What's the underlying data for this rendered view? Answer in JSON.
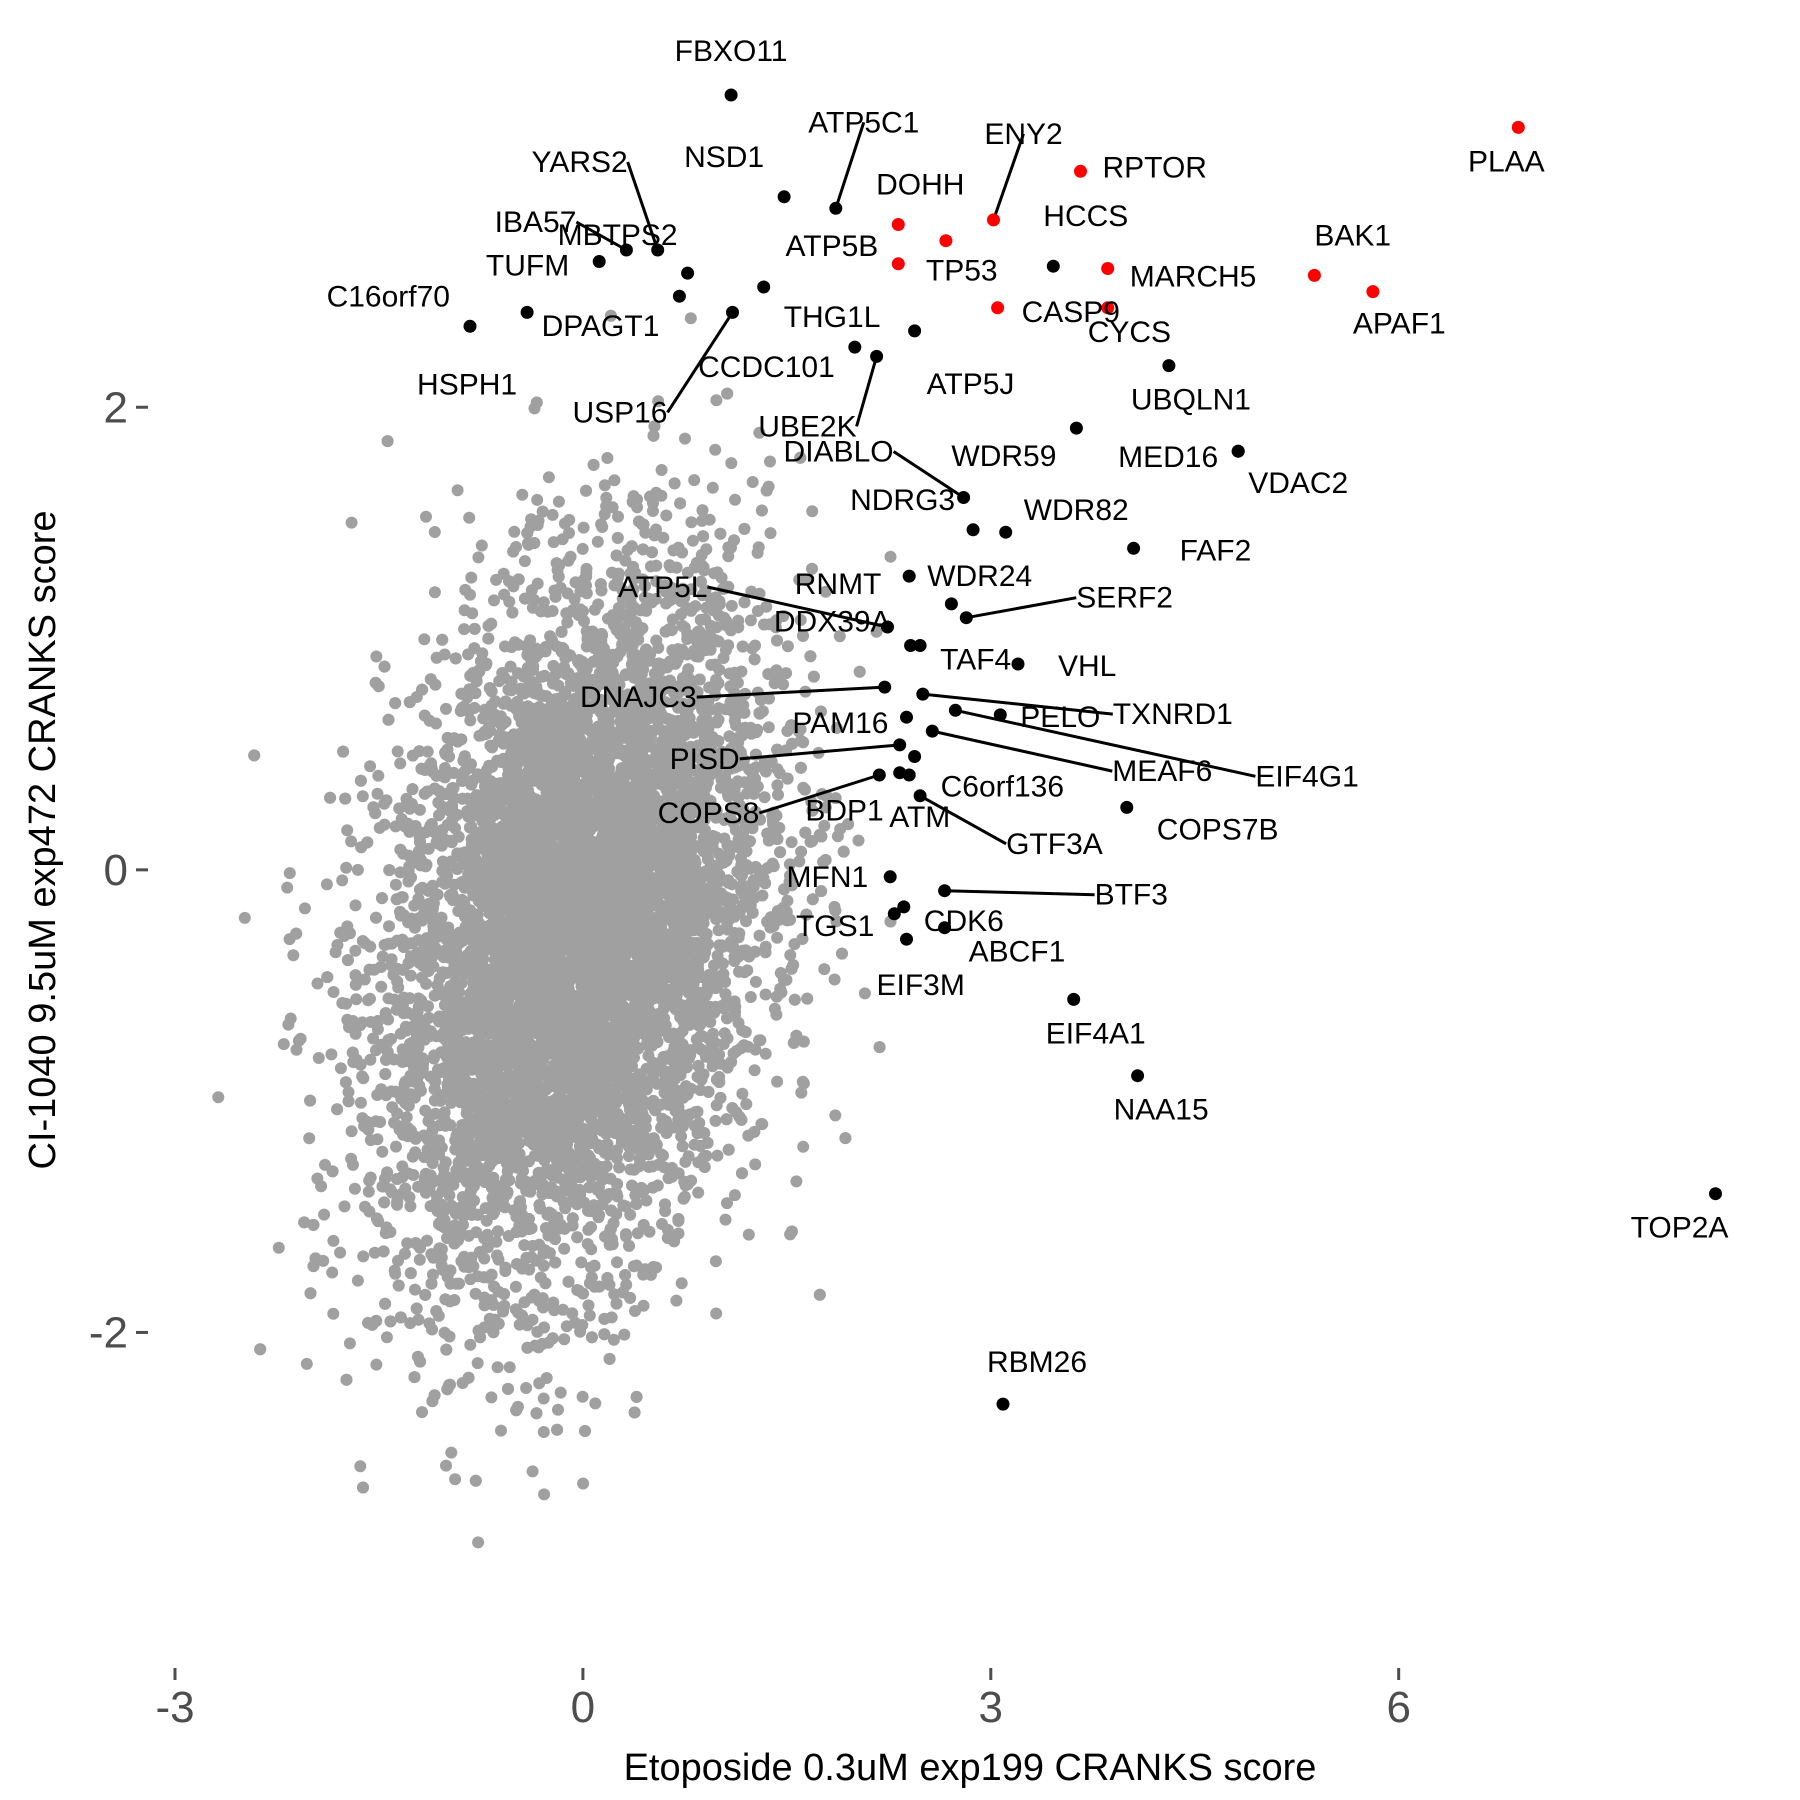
{
  "chart_data": {
    "type": "scatter",
    "xlabel": "Etoposide 0.3uM exp199 CRANKS score",
    "ylabel": "CI-1040 9.5uM exp472 CRANKS score",
    "xlim": [
      -3.0,
      8.4
    ],
    "ylim": [
      -3.2,
      3.35
    ],
    "x_ticks": [
      -3,
      0,
      3,
      6
    ],
    "x_tick_labels": [
      "-3",
      "0",
      "3",
      "6"
    ],
    "y_ticks": [
      -2,
      0,
      2
    ],
    "y_tick_labels": [
      "-2",
      "0",
      "2"
    ],
    "grid": false,
    "legend": "none",
    "colors": {
      "background": "#a0a0a0",
      "labeled": "#000000",
      "highlight": "#ff0000"
    },
    "background_cloud": {
      "description_count": 9000,
      "x_mean": -0.05,
      "x_sd": 0.7,
      "y_mean": -0.25,
      "y_sd": 0.75,
      "corr": 0.3
    },
    "points": [
      {
        "label": "FBXO11",
        "x": 1.09,
        "y": 3.35,
        "color": "#000000"
      },
      {
        "label": "PLAA",
        "x": 6.88,
        "y": 3.21,
        "color": "#ff0000"
      },
      {
        "label": "RPTOR",
        "x": 3.66,
        "y": 3.02,
        "color": "#ff0000"
      },
      {
        "label": "ENY2",
        "x": 3.02,
        "y": 2.81,
        "color": "#ff0000"
      },
      {
        "label": "ATP5C1",
        "x": 1.86,
        "y": 2.86,
        "color": "#000000"
      },
      {
        "label": "NSD1",
        "x": 1.48,
        "y": 2.91,
        "color": "#000000"
      },
      {
        "label": "DOHH",
        "x": 2.32,
        "y": 2.79,
        "color": "#ff0000"
      },
      {
        "label": "TP53",
        "x": 2.67,
        "y": 2.72,
        "color": "#ff0000"
      },
      {
        "label": "YARS2",
        "x": 0.55,
        "y": 2.68,
        "color": "#000000"
      },
      {
        "label": "IBA57",
        "x": 0.32,
        "y": 2.68,
        "color": "#000000"
      },
      {
        "label": "MBTPS2",
        "x": 0.77,
        "y": 2.58,
        "color": "#000000"
      },
      {
        "label": "TUFM",
        "x": 0.12,
        "y": 2.63,
        "color": "#000000"
      },
      {
        "label": "ATP5B",
        "x": 2.32,
        "y": 2.62,
        "color": "#ff0000"
      },
      {
        "label": "HCCS",
        "x": 3.46,
        "y": 2.61,
        "color": "#000000"
      },
      {
        "label": "MARCH5",
        "x": 3.86,
        "y": 2.6,
        "color": "#ff0000"
      },
      {
        "label": "BAK1",
        "x": 5.38,
        "y": 2.57,
        "color": "#ff0000"
      },
      {
        "label": "APAF1",
        "x": 5.81,
        "y": 2.5,
        "color": "#ff0000"
      },
      {
        "label": "DPAGT1",
        "x": 0.71,
        "y": 2.48,
        "color": "#000000"
      },
      {
        "label": "THG1L",
        "x": 1.33,
        "y": 2.52,
        "color": "#000000"
      },
      {
        "label": "C16orf70",
        "x": -0.83,
        "y": 2.35,
        "color": "#000000"
      },
      {
        "label": "HSPH1",
        "x": -0.41,
        "y": 2.41,
        "color": "#000000"
      },
      {
        "label": "USP16",
        "x": 1.1,
        "y": 2.41,
        "color": "#000000"
      },
      {
        "label": "CCDC101",
        "x": 2.0,
        "y": 2.26,
        "color": "#000000"
      },
      {
        "label": "CASP9",
        "x": 3.05,
        "y": 2.43,
        "color": "#ff0000"
      },
      {
        "label": "CYCS",
        "x": 3.86,
        "y": 2.43,
        "color": "#ff0000"
      },
      {
        "label": "ATP5J",
        "x": 2.44,
        "y": 2.33,
        "color": "#000000"
      },
      {
        "label": "UBE2K",
        "x": 2.16,
        "y": 2.22,
        "color": "#000000"
      },
      {
        "label": "UBQLN1",
        "x": 4.31,
        "y": 2.18,
        "color": "#000000"
      },
      {
        "label": "WDR59",
        "x": 3.63,
        "y": 1.91,
        "color": "#000000"
      },
      {
        "label": "MED16",
        "x": 4.82,
        "y": 1.81,
        "color": "#000000"
      },
      {
        "label": "VDAC2",
        "x": 4.82,
        "y": 1.81,
        "color": "#000000"
      },
      {
        "label": "DIABLO",
        "x": 2.8,
        "y": 1.61,
        "color": "#000000"
      },
      {
        "label": "WDR82",
        "x": 3.11,
        "y": 1.46,
        "color": "#000000"
      },
      {
        "label": "FAF2",
        "x": 4.05,
        "y": 1.39,
        "color": "#000000"
      },
      {
        "label": "NDRG3",
        "x": 2.87,
        "y": 1.47,
        "color": "#000000"
      },
      {
        "label": "WDR24",
        "x": 2.4,
        "y": 1.27,
        "color": "#000000"
      },
      {
        "label": "SERF2",
        "x": 2.82,
        "y": 1.09,
        "color": "#000000"
      },
      {
        "label": "RNMT",
        "x": 2.71,
        "y": 1.15,
        "color": "#000000"
      },
      {
        "label": "ATP5L",
        "x": 2.24,
        "y": 1.05,
        "color": "#000000"
      },
      {
        "label": "TAF4",
        "x": 2.48,
        "y": 0.97,
        "color": "#000000"
      },
      {
        "label": "VHL",
        "x": 3.2,
        "y": 0.89,
        "color": "#000000"
      },
      {
        "label": "DDX39A",
        "x": 2.41,
        "y": 0.97,
        "color": "#000000"
      },
      {
        "label": "DNAJC3",
        "x": 2.22,
        "y": 0.79,
        "color": "#000000"
      },
      {
        "label": "TXNRD1",
        "x": 2.5,
        "y": 0.76,
        "color": "#000000"
      },
      {
        "label": "PELO",
        "x": 3.07,
        "y": 0.67,
        "color": "#000000"
      },
      {
        "label": "EIF4G1",
        "x": 2.74,
        "y": 0.69,
        "color": "#000000"
      },
      {
        "label": "PAM16",
        "x": 2.38,
        "y": 0.66,
        "color": "#000000"
      },
      {
        "label": "MEAF6",
        "x": 2.57,
        "y": 0.6,
        "color": "#000000"
      },
      {
        "label": "PISD",
        "x": 2.33,
        "y": 0.54,
        "color": "#000000"
      },
      {
        "label": "C6orf136",
        "x": 2.44,
        "y": 0.49,
        "color": "#000000"
      },
      {
        "label": "COPS8",
        "x": 2.18,
        "y": 0.41,
        "color": "#000000"
      },
      {
        "label": "BDP1",
        "x": 2.33,
        "y": 0.42,
        "color": "#000000"
      },
      {
        "label": "ATM",
        "x": 2.4,
        "y": 0.41,
        "color": "#000000"
      },
      {
        "label": "GTF3A",
        "x": 2.48,
        "y": 0.32,
        "color": "#000000"
      },
      {
        "label": "COPS7B",
        "x": 4.0,
        "y": 0.27,
        "color": "#000000"
      },
      {
        "label": "MFN1",
        "x": 2.26,
        "y": -0.03,
        "color": "#000000"
      },
      {
        "label": "CDK6",
        "x": 2.36,
        "y": -0.16,
        "color": "#000000"
      },
      {
        "label": "BTF3",
        "x": 2.66,
        "y": -0.09,
        "color": "#000000"
      },
      {
        "label": "TGS1",
        "x": 2.29,
        "y": -0.19,
        "color": "#000000"
      },
      {
        "label": "ABCF1",
        "x": 2.66,
        "y": -0.25,
        "color": "#000000"
      },
      {
        "label": "EIF3M",
        "x": 2.38,
        "y": -0.3,
        "color": "#000000"
      },
      {
        "label": "EIF4A1",
        "x": 3.61,
        "y": -0.56,
        "color": "#000000"
      },
      {
        "label": "NAA15",
        "x": 4.08,
        "y": -0.89,
        "color": "#000000"
      },
      {
        "label": "TOP2A",
        "x": 8.33,
        "y": -1.4,
        "color": "#000000"
      },
      {
        "label": "RBM26",
        "x": 3.09,
        "y": -2.31,
        "color": "#000000"
      }
    ]
  }
}
